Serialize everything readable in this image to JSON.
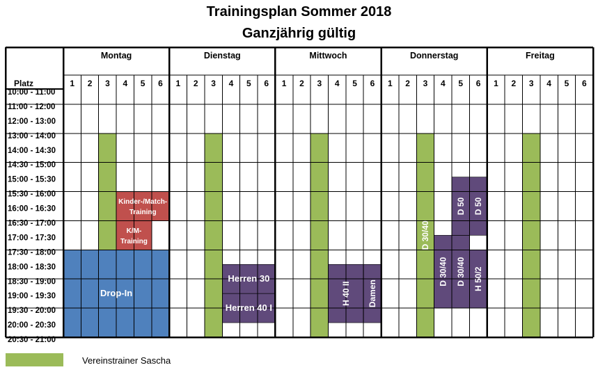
{
  "title": "Trainingsplan Sommer 2018",
  "subtitle": "Ganzjährig gültig",
  "platz_label": "Platz",
  "days": [
    "Montag",
    "Dienstag",
    "Mittwoch",
    "Donnerstag",
    "Freitag"
  ],
  "courts": [
    "1",
    "2",
    "3",
    "4",
    "5",
    "6"
  ],
  "time_slots": [
    "10:00 - 11:00",
    "11:00 - 12:00",
    "12:00 - 13:00",
    "13:00 - 14:00",
    "14:00 - 14:30",
    "14:30 - 15:00",
    "15:00 - 15:30",
    "15:30 - 16:00",
    "16:00 - 16:30",
    "16:30 - 17:00",
    "17:00 - 17:30",
    "17:30 - 18:00",
    "18:00 - 18:30",
    "18:30 - 19:00",
    "19:00 - 19:30",
    "19:30 - 20:00",
    "20:00 - 20:30",
    "20:30 - 21:00"
  ],
  "colors": {
    "green": "#9bbb59",
    "red": "#c0504d",
    "blue": "#4f81bd",
    "purple": "#604a7b"
  },
  "blocks": [
    {
      "day": 0,
      "court": 3,
      "courts": 1,
      "from": "14:00",
      "to": "18:00",
      "color": "green",
      "label": ""
    },
    {
      "day": 0,
      "court": 4,
      "courts": 3,
      "from": "16:00",
      "to": "17:00",
      "color": "red",
      "label": "Kinder-/Match-|Training"
    },
    {
      "day": 0,
      "court": 4,
      "courts": 2,
      "from": "17:00",
      "to": "18:00",
      "color": "red",
      "label": "K/M-|Training"
    },
    {
      "day": 0,
      "court": 1,
      "courts": 6,
      "from": "18:00",
      "to": "21:00",
      "color": "blue",
      "label": "Drop-In"
    },
    {
      "day": 1,
      "court": 3,
      "courts": 1,
      "from": "14:00",
      "to": "21:00",
      "color": "green",
      "label": ""
    },
    {
      "day": 1,
      "court": 4,
      "courts": 3,
      "from": "18:30",
      "to": "19:30",
      "color": "purple",
      "label": "Herren 30"
    },
    {
      "day": 1,
      "court": 4,
      "courts": 3,
      "from": "19:30",
      "to": "20:30",
      "color": "purple",
      "label": "Herren 40 I"
    },
    {
      "day": 2,
      "court": 3,
      "courts": 1,
      "from": "14:00",
      "to": "21:00",
      "color": "green",
      "label": ""
    },
    {
      "day": 2,
      "court": 4,
      "courts": 2,
      "from": "18:30",
      "to": "20:30",
      "color": "purple",
      "label": "H 40 II",
      "vertical": true
    },
    {
      "day": 2,
      "court": 6,
      "courts": 1,
      "from": "18:30",
      "to": "20:30",
      "color": "purple",
      "label": "Damen",
      "vertical": true
    },
    {
      "day": 3,
      "court": 3,
      "courts": 1,
      "from": "14:00",
      "to": "21:00",
      "color": "green",
      "label": "D 30/40",
      "vertical": true
    },
    {
      "day": 3,
      "court": 4,
      "courts": 1,
      "from": "17:30",
      "to": "20:00",
      "color": "purple",
      "label": "D 30/40",
      "vertical": true
    },
    {
      "day": 3,
      "court": 5,
      "courts": 1,
      "from": "15:30",
      "to": "17:30",
      "color": "purple",
      "label": "D 50",
      "vertical": true
    },
    {
      "day": 3,
      "court": 5,
      "courts": 1,
      "from": "17:30",
      "to": "20:00",
      "color": "purple",
      "label": "D 30/40",
      "vertical": true
    },
    {
      "day": 3,
      "court": 6,
      "courts": 1,
      "from": "15:30",
      "to": "17:30",
      "color": "purple",
      "label": "D 50",
      "vertical": true
    },
    {
      "day": 3,
      "court": 6,
      "courts": 1,
      "from": "18:00",
      "to": "20:00",
      "color": "purple",
      "label": "H 50/2",
      "vertical": true
    },
    {
      "day": 4,
      "court": 3,
      "courts": 1,
      "from": "14:00",
      "to": "21:00",
      "color": "green",
      "label": ""
    }
  ],
  "legend": {
    "label": "Vereinstrainer Sascha",
    "color": "#9bbb59"
  }
}
